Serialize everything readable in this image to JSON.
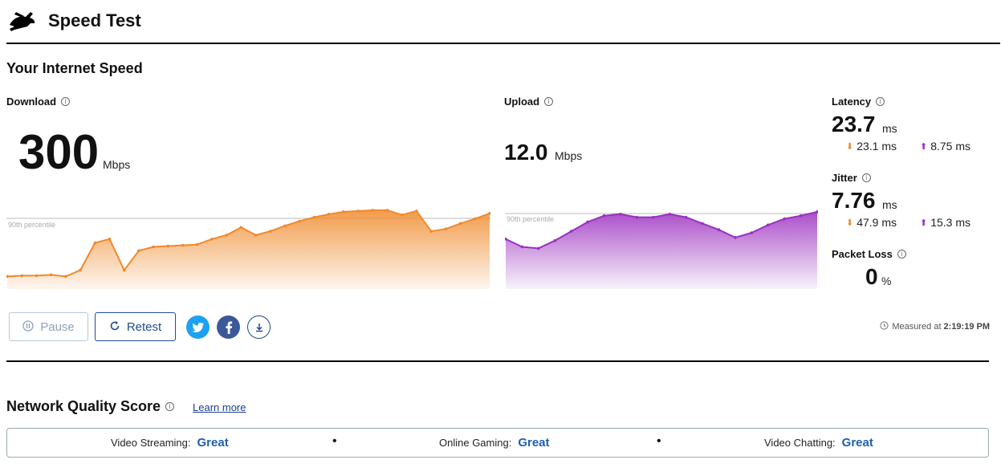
{
  "app": {
    "title": "Speed Test",
    "logo_icon": "rabbit-logo-icon"
  },
  "section": {
    "title": "Your Internet Speed"
  },
  "download": {
    "label": "Download",
    "value": "300",
    "unit": "Mbps",
    "color": "#f08a2c"
  },
  "upload": {
    "label": "Upload",
    "value": "12.0",
    "unit": "Mbps",
    "color": "#9b30c0"
  },
  "latency": {
    "label": "Latency",
    "value": "23.7",
    "unit": "ms",
    "down_value": "23.1 ms",
    "up_value": "8.75 ms"
  },
  "jitter": {
    "label": "Jitter",
    "value": "7.76",
    "unit": "ms",
    "down_value": "47.9 ms",
    "up_value": "15.3 ms"
  },
  "packet_loss": {
    "label": "Packet Loss",
    "value": "0",
    "unit": "%"
  },
  "percentile_label": "90th percentile",
  "buttons": {
    "pause": "Pause",
    "retest": "Retest"
  },
  "share_icons": [
    "twitter-icon",
    "facebook-icon",
    "download-icon"
  ],
  "measured": {
    "label": "Measured at",
    "time": "2:19:19 PM"
  },
  "network_quality": {
    "title": "Network Quality Score",
    "learn_more": "Learn more",
    "items": [
      {
        "label": "Video Streaming:",
        "value": "Great"
      },
      {
        "label": "Online Gaming:",
        "value": "Great"
      },
      {
        "label": "Video Chatting:",
        "value": "Great"
      }
    ]
  },
  "chart_data": [
    {
      "type": "area",
      "series": [
        {
          "values": [
            0.12,
            0.13,
            0.13,
            0.14,
            0.12,
            0.2,
            0.55,
            0.6,
            0.2,
            0.45,
            0.5,
            0.51,
            0.52,
            0.53,
            0.6,
            0.65,
            0.75,
            0.65,
            0.7,
            0.77,
            0.83,
            0.88,
            0.92,
            0.95,
            0.96,
            0.97,
            0.97,
            0.91,
            0.96,
            0.7,
            0.73,
            0.8,
            0.86,
            0.93
          ]
        }
      ],
      "reference_line": "90th percentile"
    },
    {
      "type": "area",
      "series": [
        {
          "values": [
            0.6,
            0.5,
            0.48,
            0.58,
            0.7,
            0.82,
            0.9,
            0.92,
            0.88,
            0.88,
            0.92,
            0.88,
            0.8,
            0.72,
            0.62,
            0.68,
            0.78,
            0.86,
            0.9,
            0.95
          ]
        }
      ],
      "reference_line": "90th percentile"
    }
  ]
}
